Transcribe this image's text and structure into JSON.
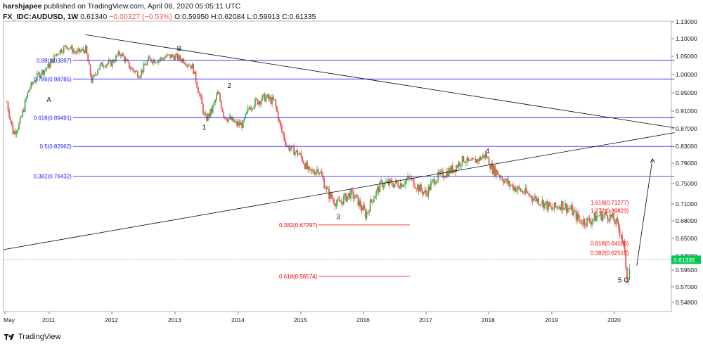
{
  "header": {
    "author": "harshjapee",
    "published": "published on TradingView.com, April 08, 2020 05:05:11 UTC",
    "symbol": "FX_IDC:AUDUSD, 1W",
    "last": "0.61340",
    "change": "−0.00327 (−0.53%)",
    "open": "O:0.59950",
    "high": "H:0.62084",
    "low": "L:0.59913",
    "close": "C:0.61335"
  },
  "footer": {
    "brand": "TradingView"
  },
  "colors": {
    "up": "#26a69a",
    "up_bright": "#4caf50",
    "down": "#ef5350",
    "fib_blue": "#1a1aff",
    "fib_red": "#ff0000",
    "trend": "#000000",
    "last_price_bg": "#00c853",
    "last_price_line": "#4caf50"
  },
  "chart_data": {
    "type": "line",
    "title": "",
    "xlabel": "",
    "ylabel": "",
    "x_ticks": [
      "May",
      "2011",
      "2012",
      "2013",
      "2014",
      "2015",
      "2016",
      "2017",
      "2018",
      "2019",
      "2020"
    ],
    "y_ticks": [
      "1.13000",
      "1.10000",
      "1.05000",
      "1.00000",
      "0.95000",
      "0.91000",
      "0.87000",
      "0.83000",
      "0.79000",
      "0.75000",
      "0.71000",
      "0.68000",
      "0.65000",
      "0.62000",
      "0.59500",
      "0.57000",
      "0.54800"
    ],
    "y_tick_values": [
      1.13,
      1.1,
      1.05,
      1.0,
      0.95,
      0.91,
      0.87,
      0.83,
      0.79,
      0.75,
      0.71,
      0.68,
      0.65,
      0.62,
      0.595,
      0.57,
      0.548
    ],
    "last_price": "0.61335",
    "series": [
      {
        "x": [
          2010.35,
          2010.45,
          2010.55,
          2010.7,
          2010.85,
          2011.0,
          2011.15,
          2011.3,
          2011.45,
          2011.6,
          2011.7,
          2011.8,
          2011.9,
          2012.0,
          2012.15,
          2012.3,
          2012.45,
          2012.6,
          2012.75,
          2012.9,
          2013.0,
          2013.15,
          2013.3,
          2013.4,
          2013.5,
          2013.6,
          2013.7,
          2013.8,
          2013.9,
          2014.0,
          2014.1,
          2014.2,
          2014.3,
          2014.45,
          2014.6,
          2014.7,
          2014.8,
          2014.9,
          2015.0,
          2015.15,
          2015.3,
          2015.45,
          2015.6,
          2015.7,
          2015.8,
          2015.9,
          2016.0,
          2016.05,
          2016.15,
          2016.3,
          2016.45,
          2016.6,
          2016.75,
          2016.9,
          2017.0,
          2017.15,
          2017.3,
          2017.45,
          2017.6,
          2017.7,
          2017.85,
          2017.95,
          2018.05,
          2018.15,
          2018.3,
          2018.45,
          2018.6,
          2018.75,
          2018.9,
          2019.0,
          2019.15,
          2019.3,
          2019.45,
          2019.6,
          2019.75,
          2019.9,
          2020.0,
          2020.1,
          2020.15,
          2020.2,
          2020.25
        ],
        "values": [
          0.93,
          0.86,
          0.88,
          0.96,
          1.0,
          1.02,
          1.06,
          1.08,
          1.06,
          1.07,
          0.98,
          1.02,
          1.03,
          1.03,
          1.06,
          1.02,
          1.0,
          1.04,
          1.04,
          1.05,
          1.05,
          1.04,
          1.02,
          0.95,
          0.89,
          0.91,
          0.95,
          0.9,
          0.89,
          0.88,
          0.88,
          0.92,
          0.93,
          0.94,
          0.93,
          0.87,
          0.83,
          0.82,
          0.81,
          0.77,
          0.78,
          0.73,
          0.71,
          0.72,
          0.73,
          0.72,
          0.7,
          0.69,
          0.72,
          0.75,
          0.75,
          0.75,
          0.76,
          0.74,
          0.73,
          0.76,
          0.77,
          0.78,
          0.8,
          0.79,
          0.8,
          0.81,
          0.78,
          0.77,
          0.75,
          0.74,
          0.73,
          0.72,
          0.71,
          0.7,
          0.71,
          0.7,
          0.68,
          0.68,
          0.69,
          0.69,
          0.68,
          0.66,
          0.63,
          0.58,
          0.61
        ]
      }
    ],
    "trend_lines": [
      {
        "x1": 2011.6,
        "y1": 1.107,
        "x2": 2020.95,
        "y2": 0.872
      },
      {
        "x1": 2010.3,
        "y1": 0.631,
        "x2": 2020.95,
        "y2": 0.861
      },
      {
        "x1": 2020.35,
        "y1": 0.603,
        "x2": 2020.6,
        "y2": 0.8
      }
    ],
    "fib_levels": [
      {
        "label": "0.88(1.03887)",
        "value": 1.03887,
        "color": "blue",
        "x_start": 2011.4,
        "x_end": 2020.95
      },
      {
        "label": "0.786(0.98785)",
        "value": 0.98785,
        "color": "blue",
        "x_start": 2011.4,
        "x_end": 2020.95
      },
      {
        "label": "0.618(0.89491)",
        "value": 0.89491,
        "color": "blue",
        "x_start": 2011.4,
        "x_end": 2020.95
      },
      {
        "label": "0.5(0.82962)",
        "value": 0.82962,
        "color": "blue",
        "x_start": 2011.4,
        "x_end": 2020.95
      },
      {
        "label": "0.382(0.76432)",
        "value": 0.76432,
        "color": "blue",
        "x_start": 2011.4,
        "x_end": 2020.95
      },
      {
        "label": "0.382(0.67297)",
        "value": 0.67297,
        "color": "red",
        "x_start": 2015.3,
        "x_end": 2016.75
      },
      {
        "label": "0.618(0.58574)",
        "value": 0.58574,
        "color": "red",
        "x_start": 2015.3,
        "x_end": 2016.75
      },
      {
        "label": "1.618(0.71277)",
        "value": 0.71277,
        "color": "red",
        "x_start": 2020.2,
        "x_end": 2020.2
      },
      {
        "label": "1.272(0.69823)",
        "value": 0.69823,
        "color": "red",
        "x_start": 2020.2,
        "x_end": 2020.2
      },
      {
        "label": "0.618(0.64186)",
        "value": 0.64186,
        "color": "red",
        "x_start": 2020.2,
        "x_end": 2020.2
      },
      {
        "label": "0.382(0.62512)",
        "value": 0.62512,
        "color": "red",
        "x_start": 2020.2,
        "x_end": 2020.2
      }
    ],
    "wave_labels": [
      {
        "text": "A",
        "x": 2010.98,
        "y": 0.93
      },
      {
        "text": "B",
        "x": 2013.05,
        "y": 1.065
      },
      {
        "text": "1",
        "x": 2013.45,
        "y": 0.868
      },
      {
        "text": "2",
        "x": 2013.85,
        "y": 0.963
      },
      {
        "text": "3",
        "x": 2015.58,
        "y": 0.683
      },
      {
        "text": "4",
        "x": 2017.95,
        "y": 0.813
      },
      {
        "text": "5 C",
        "x": 2020.05,
        "y": 0.577
      }
    ]
  }
}
